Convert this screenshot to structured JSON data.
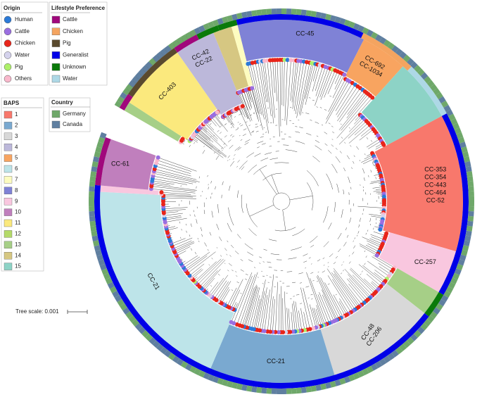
{
  "legends": {
    "origin": {
      "title": "Origin",
      "items": [
        {
          "label": "Human",
          "color": "#2b7ad8"
        },
        {
          "label": "Cattle",
          "color": "#9a6ee0"
        },
        {
          "label": "Chicken",
          "color": "#e8251a"
        },
        {
          "label": "Water",
          "color": "#d4d2ec"
        },
        {
          "label": "Pig",
          "color": "#aef06a"
        },
        {
          "label": "Others",
          "color": "#f9b8cc"
        }
      ]
    },
    "lifestyle": {
      "title": "Lifestyle Preference",
      "items": [
        {
          "label": "Cattle",
          "color": "#a0087c"
        },
        {
          "label": "Chicken",
          "color": "#f4a460"
        },
        {
          "label": "Pig",
          "color": "#5a4a2e"
        },
        {
          "label": "Generalist",
          "color": "#0000e8"
        },
        {
          "label": "Unknown",
          "color": "#0a7a0a"
        },
        {
          "label": "Water",
          "color": "#add8e6"
        }
      ]
    },
    "baps": {
      "title": "BAPS",
      "items": [
        {
          "label": "1",
          "color": "#f8786c"
        },
        {
          "label": "2",
          "color": "#7aa9d0"
        },
        {
          "label": "3",
          "color": "#d8d8d8"
        },
        {
          "label": "4",
          "color": "#bcb8da"
        },
        {
          "label": "5",
          "color": "#f8a460"
        },
        {
          "label": "6",
          "color": "#bde4e9"
        },
        {
          "label": "7",
          "color": "#fdfcc0"
        },
        {
          "label": "8",
          "color": "#7f82d6"
        },
        {
          "label": "9",
          "color": "#f9c7df"
        },
        {
          "label": "10",
          "color": "#c07fbd"
        },
        {
          "label": "11",
          "color": "#fbe97d"
        },
        {
          "label": "12",
          "color": "#b4da69"
        },
        {
          "label": "13",
          "color": "#a6cf87"
        },
        {
          "label": "14",
          "color": "#d6c782"
        },
        {
          "label": "15",
          "color": "#8dd3c6"
        }
      ]
    },
    "country": {
      "title": "Country",
      "items": [
        {
          "label": "Germany",
          "color": "#6fa86a"
        },
        {
          "label": "Canada",
          "color": "#5f7fa0"
        }
      ]
    }
  },
  "clades": [
    {
      "lines": [
        "CC-45"
      ]
    },
    {
      "lines": [
        "CC-692",
        "CC-1034"
      ]
    },
    {
      "lines": [
        "CC-353",
        "CC-354",
        "CC-443",
        "CC-464",
        "CC-52"
      ]
    },
    {
      "lines": [
        "CC-257"
      ]
    },
    {
      "lines": [
        "CC-48",
        "CC-206"
      ]
    },
    {
      "lines": [
        "CC-21"
      ]
    },
    {
      "lines": [
        "CC-21"
      ]
    },
    {
      "lines": [
        "CC-61"
      ]
    },
    {
      "lines": [
        "CC-403"
      ]
    },
    {
      "lines": [
        "CC-42",
        "CC-22"
      ]
    }
  ],
  "tree_scale": "Tree scale: 0.001"
}
